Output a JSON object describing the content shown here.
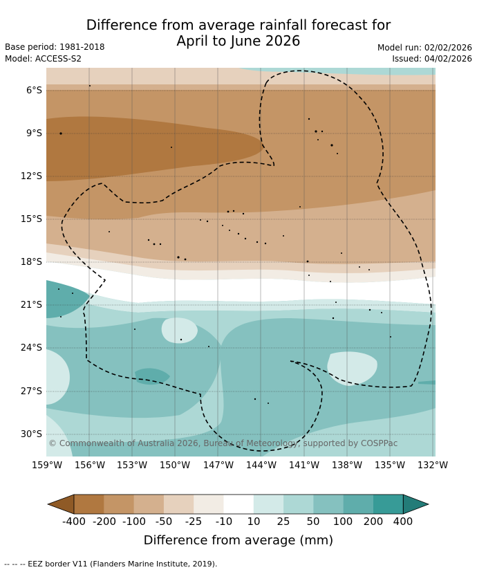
{
  "title_line1": "Difference from average rainfall forecast for",
  "title_line2": "April to June 2026",
  "base_period": "Base period: 1981-2018",
  "model": "Model: ACCESS-S2",
  "model_run": "Model run: 02/02/2026",
  "issued": "Issued: 04/02/2026",
  "copyright": "© Commonwealth of Australia 2026, Bureau of Meteorology, supported by COSPPac",
  "lat_labels": [
    "6°S",
    "9°S",
    "12°S",
    "15°S",
    "18°S",
    "21°S",
    "24°S",
    "27°S",
    "30°S"
  ],
  "lon_labels": [
    "159°W",
    "156°W",
    "153°W",
    "150°W",
    "147°W",
    "144°W",
    "141°W",
    "138°W",
    "135°W",
    "132°W"
  ],
  "colorbar": {
    "title": "Difference from average (mm)",
    "labels": [
      "-400",
      "-200",
      "-100",
      "-50",
      "-25",
      "-10",
      "10",
      "25",
      "50",
      "100",
      "200",
      "400"
    ],
    "colors": [
      "#8f5a26",
      "#b07840",
      "#c49566",
      "#d4b08e",
      "#e6d1bd",
      "#f2ece4",
      "#ffffff",
      "#d3eae8",
      "#add8d5",
      "#85c1bf",
      "#5fadab",
      "#379b97",
      "#237c78"
    ]
  },
  "footer": "--  --  -- EEZ border V11 (Flanders Marine Institute, 2019)."
}
